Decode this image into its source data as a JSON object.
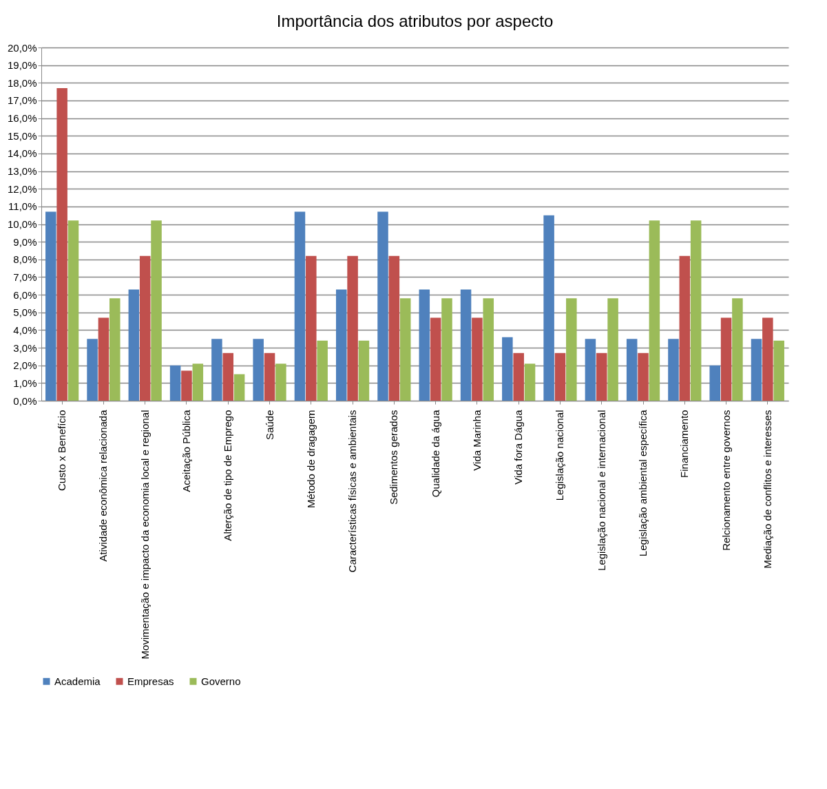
{
  "chart_data": {
    "type": "bar",
    "title": "Importância dos atributos por aspecto",
    "categories": [
      "Custo x Benefício",
      "Atividade econômica relacionada",
      "Movimentação e impacto  da economia local e regional",
      "Aceitação Pública",
      "Alterção de tipo de Emprego",
      "Saúde",
      "Método de dragagem",
      "Características físicas  e ambientais",
      "Sedimentos gerados",
      "Qualidade da água",
      "Vida Marinha",
      "Vida fora Dágua",
      "Legislação nacional",
      "Legislação nacional  e  internacional",
      "Legislação ambiental  específica",
      "Financiamento",
      "Relcionamento entre governos",
      "Mediação de conflitos e interesses"
    ],
    "series": [
      {
        "name": "Academia",
        "color": "#4f81bd",
        "values": [
          10.7,
          3.5,
          6.3,
          2.0,
          3.5,
          3.5,
          10.7,
          6.3,
          10.7,
          6.3,
          6.3,
          3.6,
          10.5,
          3.5,
          3.5,
          3.5,
          2.0,
          3.5
        ]
      },
      {
        "name": "Empresas",
        "color": "#c0504d",
        "values": [
          17.7,
          4.7,
          8.2,
          1.7,
          2.7,
          2.7,
          8.2,
          8.2,
          8.2,
          4.7,
          4.7,
          2.7,
          2.7,
          2.7,
          2.7,
          8.2,
          4.7,
          4.7
        ]
      },
      {
        "name": "Governo",
        "color": "#9bbb59",
        "values": [
          10.2,
          5.8,
          10.2,
          2.1,
          1.5,
          2.1,
          3.4,
          3.4,
          5.8,
          5.8,
          5.8,
          2.1,
          5.8,
          5.8,
          10.2,
          10.2,
          5.8,
          3.4
        ]
      }
    ],
    "ylim": [
      0,
      20
    ],
    "yticks": [
      {
        "value": 0,
        "label": "0,0%"
      },
      {
        "value": 1,
        "label": "1,0%"
      },
      {
        "value": 2,
        "label": "2,0%"
      },
      {
        "value": 3,
        "label": "3,0%"
      },
      {
        "value": 4,
        "label": "4,0%"
      },
      {
        "value": 5,
        "label": "5,0%"
      },
      {
        "value": 6,
        "label": "6,0%"
      },
      {
        "value": 7,
        "label": "7,0%"
      },
      {
        "value": 8,
        "label": "8,0%"
      },
      {
        "value": 9,
        "label": "9,0%"
      },
      {
        "value": 10,
        "label": "10,0%"
      },
      {
        "value": 11,
        "label": "11,0%"
      },
      {
        "value": 12,
        "label": "12,0%"
      },
      {
        "value": 13,
        "label": "13,0%"
      },
      {
        "value": 14,
        "label": "14,0%"
      },
      {
        "value": 15,
        "label": "15,0%"
      },
      {
        "value": 16,
        "label": "16,0%"
      },
      {
        "value": 17,
        "label": "17,0%"
      },
      {
        "value": 18,
        "label": "18,0%"
      },
      {
        "value": 19,
        "label": "19,0%"
      },
      {
        "value": 20,
        "label": "20,0%"
      }
    ],
    "grid": "y",
    "legend": "bottom"
  }
}
